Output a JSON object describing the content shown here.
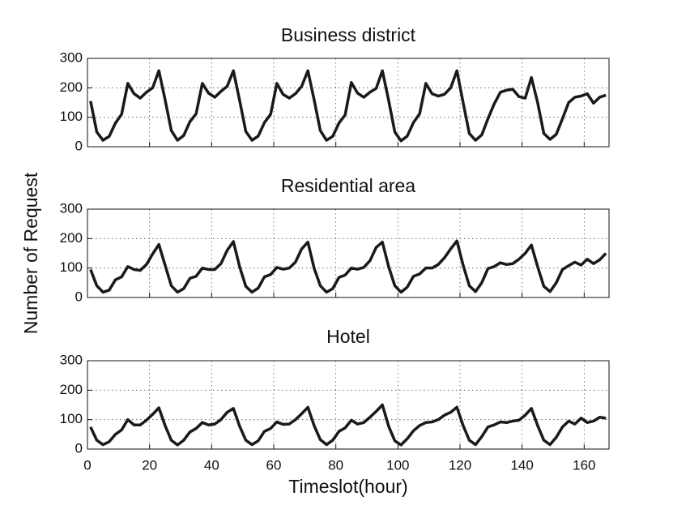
{
  "chart_data": [
    {
      "type": "line",
      "title": "Business district",
      "color": "#1a1a1a",
      "x": [
        1,
        3,
        5,
        7,
        9,
        11,
        13,
        15,
        17,
        19,
        21,
        23,
        25,
        27,
        29,
        31,
        33,
        35,
        37,
        39,
        41,
        43,
        45,
        47,
        49,
        51,
        53,
        55,
        57,
        59,
        61,
        63,
        65,
        67,
        69,
        71,
        73,
        75,
        77,
        79,
        81,
        83,
        85,
        87,
        89,
        91,
        93,
        95,
        97,
        99,
        101,
        103,
        105,
        107,
        109,
        111,
        113,
        115,
        117,
        119,
        121,
        123,
        125,
        127,
        129,
        131,
        133,
        135,
        137,
        139,
        141,
        143,
        145,
        147,
        149,
        151,
        153,
        155,
        157,
        159,
        161,
        163,
        165,
        167
      ],
      "values": [
        155,
        50,
        22,
        35,
        80,
        110,
        215,
        180,
        165,
        185,
        200,
        258,
        160,
        55,
        22,
        38,
        85,
        112,
        215,
        182,
        168,
        188,
        205,
        258,
        158,
        52,
        22,
        36,
        82,
        110,
        215,
        178,
        165,
        180,
        205,
        258,
        160,
        55,
        22,
        35,
        80,
        108,
        218,
        182,
        168,
        185,
        198,
        258,
        158,
        50,
        20,
        36,
        82,
        112,
        215,
        180,
        172,
        178,
        200,
        258,
        150,
        45,
        22,
        40,
        95,
        145,
        185,
        192,
        195,
        170,
        165,
        235,
        150,
        45,
        25,
        42,
        95,
        150,
        168,
        172,
        180,
        148,
        168,
        175
      ],
      "xlim": [
        0,
        168
      ],
      "ylim": [
        0,
        300
      ],
      "xticks": [
        0,
        20,
        40,
        60,
        80,
        100,
        120,
        140,
        160
      ],
      "yticks": [
        0,
        100,
        200,
        300
      ],
      "grid": true
    },
    {
      "type": "line",
      "title": "Residential area",
      "ylabel": "Number of Request",
      "color": "#1a1a1a",
      "x": [
        1,
        3,
        5,
        7,
        9,
        11,
        13,
        15,
        17,
        19,
        21,
        23,
        25,
        27,
        29,
        31,
        33,
        35,
        37,
        39,
        41,
        43,
        45,
        47,
        49,
        51,
        53,
        55,
        57,
        59,
        61,
        63,
        65,
        67,
        69,
        71,
        73,
        75,
        77,
        79,
        81,
        83,
        85,
        87,
        89,
        91,
        93,
        95,
        97,
        99,
        101,
        103,
        105,
        107,
        109,
        111,
        113,
        115,
        117,
        119,
        121,
        123,
        125,
        127,
        129,
        131,
        133,
        135,
        137,
        139,
        141,
        143,
        145,
        147,
        149,
        151,
        153,
        155,
        157,
        159,
        161,
        163,
        165,
        167
      ],
      "values": [
        95,
        40,
        18,
        25,
        60,
        70,
        105,
        95,
        92,
        112,
        148,
        180,
        110,
        40,
        18,
        30,
        65,
        72,
        100,
        95,
        95,
        115,
        160,
        190,
        105,
        38,
        18,
        32,
        70,
        78,
        102,
        96,
        100,
        120,
        165,
        188,
        100,
        40,
        18,
        30,
        68,
        76,
        100,
        96,
        102,
        125,
        170,
        188,
        105,
        40,
        18,
        35,
        72,
        80,
        100,
        100,
        112,
        135,
        165,
        192,
        110,
        40,
        20,
        50,
        98,
        105,
        118,
        112,
        115,
        130,
        150,
        178,
        105,
        38,
        20,
        50,
        95,
        108,
        120,
        110,
        130,
        115,
        128,
        150
      ],
      "xlim": [
        0,
        168
      ],
      "ylim": [
        0,
        300
      ],
      "xticks": [
        0,
        20,
        40,
        60,
        80,
        100,
        120,
        140,
        160
      ],
      "yticks": [
        0,
        100,
        200,
        300
      ],
      "grid": true
    },
    {
      "type": "line",
      "title": "Hotel",
      "xlabel": "Timeslot(hour)",
      "color": "#1a1a1a",
      "x": [
        1,
        3,
        5,
        7,
        9,
        11,
        13,
        15,
        17,
        19,
        21,
        23,
        25,
        27,
        29,
        31,
        33,
        35,
        37,
        39,
        41,
        43,
        45,
        47,
        49,
        51,
        53,
        55,
        57,
        59,
        61,
        63,
        65,
        67,
        69,
        71,
        73,
        75,
        77,
        79,
        81,
        83,
        85,
        87,
        89,
        91,
        93,
        95,
        97,
        99,
        101,
        103,
        105,
        107,
        109,
        111,
        113,
        115,
        117,
        119,
        121,
        123,
        125,
        127,
        129,
        131,
        133,
        135,
        137,
        139,
        141,
        143,
        145,
        147,
        149,
        151,
        153,
        155,
        157,
        159,
        161,
        163,
        165,
        167
      ],
      "values": [
        75,
        30,
        15,
        25,
        50,
        65,
        100,
        82,
        82,
        98,
        118,
        140,
        80,
        30,
        14,
        30,
        58,
        70,
        90,
        82,
        85,
        100,
        125,
        138,
        78,
        30,
        15,
        28,
        60,
        70,
        92,
        84,
        85,
        100,
        120,
        142,
        80,
        32,
        15,
        30,
        60,
        72,
        98,
        85,
        90,
        108,
        128,
        150,
        78,
        28,
        14,
        35,
        62,
        80,
        90,
        92,
        100,
        115,
        125,
        142,
        80,
        30,
        15,
        42,
        75,
        82,
        92,
        90,
        95,
        98,
        115,
        138,
        80,
        30,
        15,
        40,
        75,
        95,
        85,
        105,
        90,
        95,
        108,
        105
      ],
      "xlim": [
        0,
        168
      ],
      "ylim": [
        0,
        300
      ],
      "xticks": [
        0,
        20,
        40,
        60,
        80,
        100,
        120,
        140,
        160
      ],
      "yticks": [
        0,
        100,
        200,
        300
      ],
      "grid": true
    }
  ]
}
